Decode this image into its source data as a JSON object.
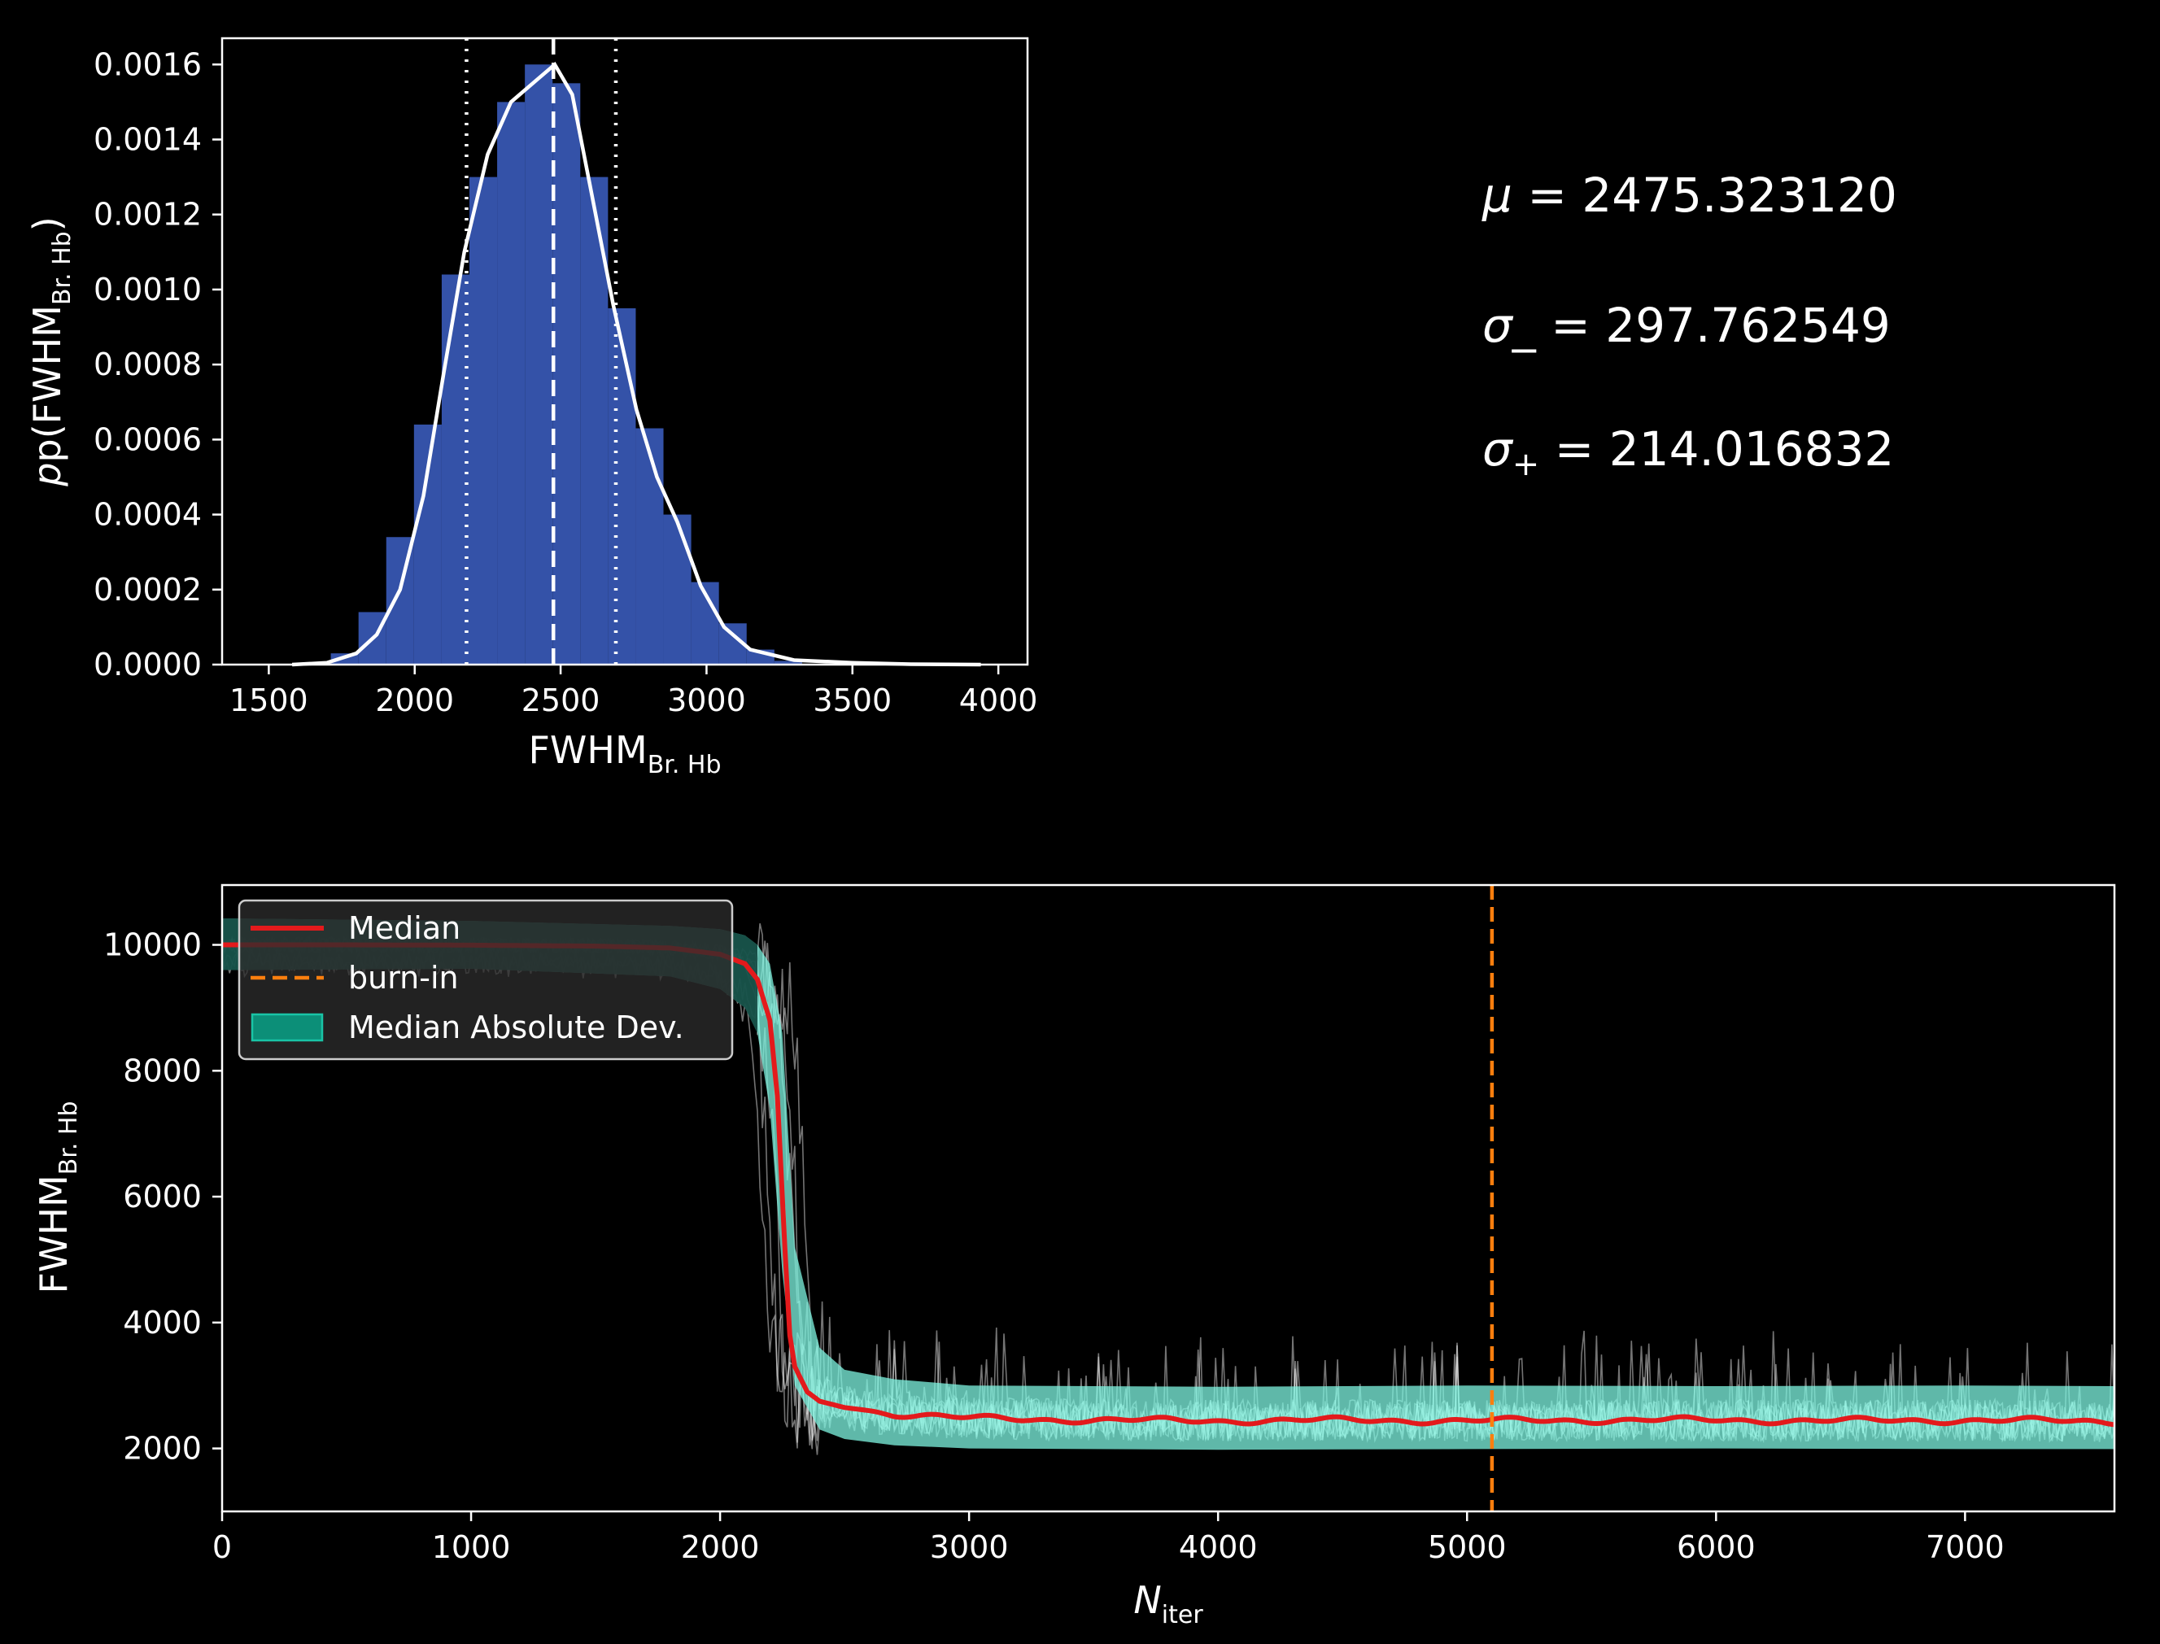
{
  "colors": {
    "background": "#000000",
    "hist_bar": "#3452a8",
    "kde_line": "#ffffff",
    "median": "#e31a1c",
    "burnin": "#ff7f0e",
    "mad_fill": "#7ff5e2",
    "mad_legend": "#0c8f78",
    "walkers": "#ffffff"
  },
  "stats": {
    "mu_label": "μ",
    "mu": "2475.323120",
    "sigma_minus_label": "σ_",
    "sigma_minus": "297.762549",
    "sigma_plus_label": "σ",
    "sigma_plus_sub": "+",
    "sigma_plus": "214.016832"
  },
  "chart_data": [
    {
      "type": "bar",
      "name": "posterior-histogram",
      "xlabel": "FWHM",
      "xlabel_sub": "Br. Hb",
      "ylabel_prefix": "p(FWHM",
      "ylabel_sub": "Br. Hb",
      "ylabel_suffix": ")",
      "xlim": [
        1340,
        4100
      ],
      "ylim": [
        0,
        0.00167
      ],
      "xticks": [
        "1500",
        "2000",
        "2500",
        "3000",
        "3500",
        "4000"
      ],
      "yticks": [
        "0.0000",
        "0.0002",
        "0.0004",
        "0.0006",
        "0.0008",
        "0.0010",
        "0.0012",
        "0.0014",
        "0.0016"
      ],
      "bin_width": 95,
      "bins": [
        [
          1760,
          3e-05
        ],
        [
          1855,
          0.00014
        ],
        [
          1950,
          0.00034
        ],
        [
          2045,
          0.00064
        ],
        [
          2140,
          0.00104
        ],
        [
          2235,
          0.0013
        ],
        [
          2330,
          0.0015
        ],
        [
          2425,
          0.0016
        ],
        [
          2520,
          0.00155
        ],
        [
          2615,
          0.0013
        ],
        [
          2710,
          0.00095
        ],
        [
          2805,
          0.00063
        ],
        [
          2900,
          0.0004
        ],
        [
          2995,
          0.00022
        ],
        [
          3090,
          0.00011
        ],
        [
          3185,
          4e-05
        ],
        [
          3280,
          1e-05
        ]
      ],
      "kde": [
        [
          1580,
          0.0
        ],
        [
          1700,
          5e-06
        ],
        [
          1800,
          3e-05
        ],
        [
          1870,
          8e-05
        ],
        [
          1950,
          0.0002
        ],
        [
          2030,
          0.00045
        ],
        [
          2100,
          0.00078
        ],
        [
          2170,
          0.0011
        ],
        [
          2250,
          0.00136
        ],
        [
          2330,
          0.0015
        ],
        [
          2420,
          0.00156
        ],
        [
          2480,
          0.0016
        ],
        [
          2540,
          0.00152
        ],
        [
          2600,
          0.00128
        ],
        [
          2680,
          0.00096
        ],
        [
          2760,
          0.00068
        ],
        [
          2830,
          0.0005
        ],
        [
          2900,
          0.00038
        ],
        [
          2980,
          0.00021
        ],
        [
          3060,
          0.0001
        ],
        [
          3150,
          4e-05
        ],
        [
          3300,
          1.2e-05
        ],
        [
          3500,
          5e-06
        ],
        [
          3700,
          1e-06
        ],
        [
          3940,
          0.0
        ]
      ],
      "median_line": 2475.3,
      "lower_line": 2177.6,
      "upper_line": 2689.3
    },
    {
      "type": "line",
      "name": "chain-trace",
      "xlabel": "N",
      "xlabel_sub": "iter",
      "ylabel": "FWHM",
      "ylabel_sub": "Br. Hb",
      "xlim": [
        0,
        7600
      ],
      "ylim": [
        1000,
        10950
      ],
      "xticks": [
        "0",
        "1000",
        "2000",
        "3000",
        "4000",
        "5000",
        "6000",
        "7000"
      ],
      "yticks": [
        "2000",
        "4000",
        "6000",
        "8000",
        "10000"
      ],
      "burn_in": 5100,
      "legend_position": "upper-left",
      "legend": [
        "Median",
        "burn-in",
        "Median Absolute Dev."
      ],
      "series": [
        {
          "name": "Median",
          "x": [
            0,
            500,
            1000,
            1500,
            1800,
            2000,
            2100,
            2150,
            2200,
            2230,
            2260,
            2280,
            2300,
            2350,
            2400,
            2500,
            2700,
            3000,
            3500,
            4000,
            4500,
            5000,
            5500,
            6000,
            6500,
            7000,
            7600
          ],
          "values": [
            10000,
            10000,
            9995,
            9980,
            9950,
            9850,
            9700,
            9450,
            8800,
            7600,
            5200,
            3800,
            3300,
            2900,
            2750,
            2650,
            2550,
            2480,
            2450,
            2440,
            2450,
            2440,
            2450,
            2450,
            2440,
            2450,
            2430
          ]
        }
      ],
      "mad_band": {
        "x": [
          0,
          1000,
          1800,
          2000,
          2100,
          2150,
          2200,
          2250,
          2300,
          2400,
          2500,
          2700,
          3000,
          4000,
          5000,
          6000,
          7000,
          7600
        ],
        "lower": [
          9600,
          9620,
          9500,
          9300,
          9000,
          8600,
          7400,
          4800,
          3000,
          2300,
          2150,
          2050,
          2000,
          1980,
          1990,
          2000,
          1990,
          1990
        ],
        "upper": [
          10420,
          10380,
          10300,
          10250,
          10150,
          10000,
          9700,
          8600,
          5200,
          3600,
          3250,
          3100,
          3000,
          2980,
          3000,
          2990,
          3000,
          2990
        ]
      }
    }
  ]
}
